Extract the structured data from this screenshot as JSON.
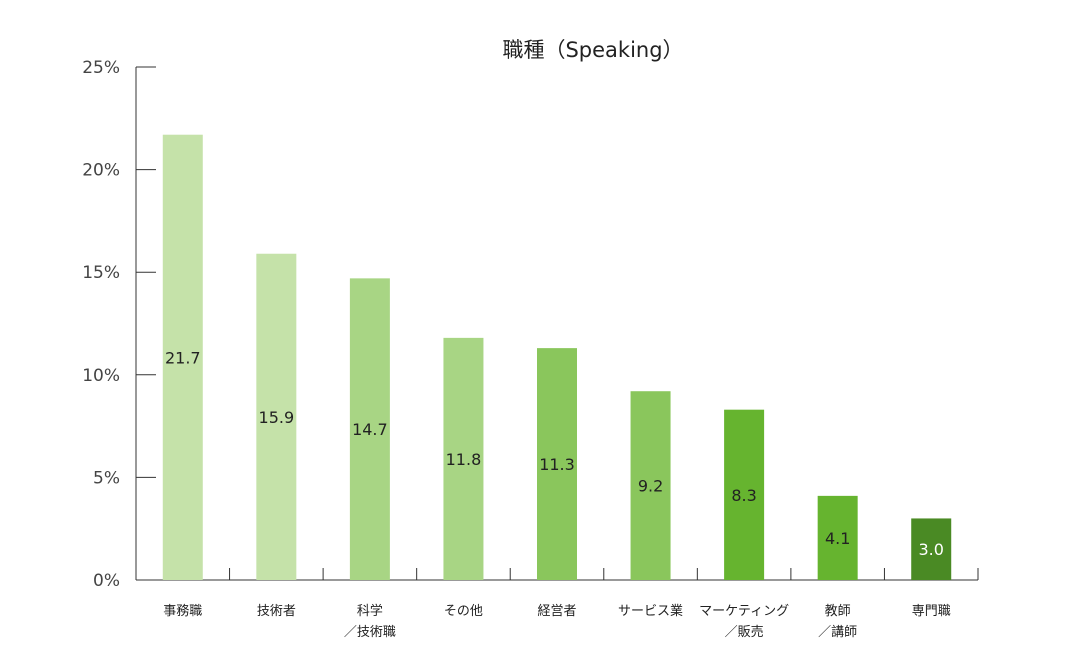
{
  "chart_data": {
    "type": "bar",
    "title": "職種（Speaking）",
    "categories": [
      [
        "事務職"
      ],
      [
        "技術者"
      ],
      [
        "科学",
        "／技術職"
      ],
      [
        "その他"
      ],
      [
        "経営者"
      ],
      [
        "サービス業"
      ],
      [
        "マーケティング",
        "／販売"
      ],
      [
        "教師",
        "／講師"
      ],
      [
        "専門職"
      ]
    ],
    "values": [
      21.7,
      15.9,
      14.7,
      11.8,
      11.3,
      9.2,
      8.3,
      4.1,
      3.0
    ],
    "value_labels": [
      "21.7",
      "15.9",
      "14.7",
      "11.8",
      "11.3",
      "9.2",
      "8.3",
      "4.1",
      "3.0"
    ],
    "bar_colors": [
      "#c5e2a9",
      "#c5e2a9",
      "#a8d584",
      "#a8d584",
      "#8ac65c",
      "#8ac65c",
      "#66b42f",
      "#66b42f",
      "#4a8a24"
    ],
    "label_colors": [
      "#222222",
      "#222222",
      "#222222",
      "#222222",
      "#222222",
      "#222222",
      "#222222",
      "#222222",
      "#ffffff"
    ],
    "yticks": [
      "0%",
      "5%",
      "10%",
      "15%",
      "20%",
      "25%"
    ],
    "ylim": [
      0,
      25
    ],
    "xlabel": "",
    "ylabel": "",
    "grid": false,
    "legend": "none"
  }
}
